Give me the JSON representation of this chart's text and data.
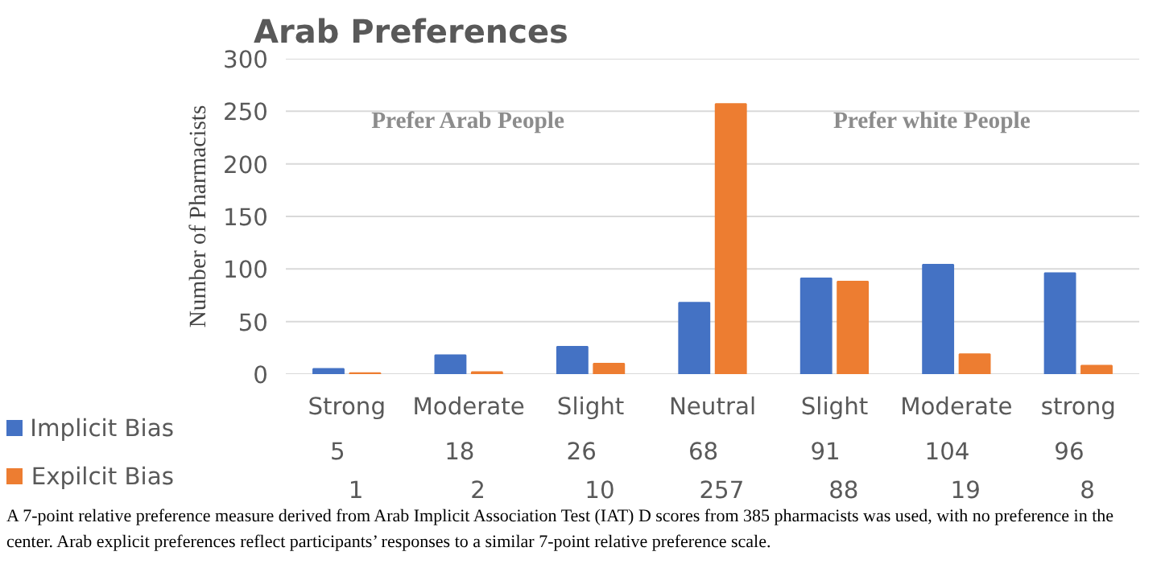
{
  "chart_data": {
    "type": "bar",
    "title": "Arab Preferences",
    "ylabel": "Number of Pharmacists",
    "categories": [
      "Strong",
      "Moderate",
      "Slight",
      "Neutral",
      "Slight",
      "Moderate",
      "strong"
    ],
    "series": [
      {
        "name": "Implicit Bias",
        "color": "#4472c4",
        "values": [
          5,
          18,
          26,
          68,
          91,
          104,
          96
        ]
      },
      {
        "name": "Expilcit Bias",
        "color": "#ed7d31",
        "values": [
          1,
          2,
          10,
          257,
          88,
          19,
          8
        ]
      }
    ],
    "ylim": [
      0,
      300
    ],
    "yticks": [
      0,
      50,
      100,
      150,
      200,
      250,
      300
    ],
    "grid": "y",
    "legend": "bottom",
    "data_labels": true,
    "annotations": [
      "Prefer Arab People",
      "Prefer white People",
      "A 7-point relative preference measure derived from Arab Implicit Association Test (IAT) D scores from 385 pharmacists was used, with no preference in the center. Arab explicit preferences reflect participants’ responses to a similar 7-point relative preference scale."
    ]
  }
}
